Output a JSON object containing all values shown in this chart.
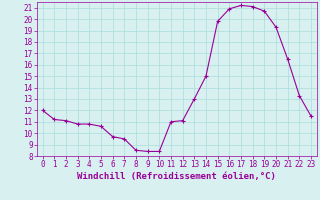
{
  "hours": [
    0,
    1,
    2,
    3,
    4,
    5,
    6,
    7,
    8,
    9,
    10,
    11,
    12,
    13,
    14,
    15,
    16,
    17,
    18,
    19,
    20,
    21,
    22,
    23
  ],
  "windchill": [
    12.0,
    11.2,
    11.1,
    10.8,
    10.8,
    10.6,
    9.7,
    9.5,
    8.5,
    8.4,
    8.4,
    11.0,
    11.1,
    13.0,
    15.0,
    19.8,
    20.9,
    21.2,
    21.1,
    20.7,
    19.3,
    16.5,
    13.3,
    11.5
  ],
  "line_color": "#990099",
  "marker": "+",
  "marker_size": 3,
  "bg_color": "#d8f0f0",
  "grid_color": "#aadddd",
  "axis_color": "#990099",
  "tick_label_color": "#990099",
  "xlabel": "Windchill (Refroidissement éolien,°C)",
  "xlabel_color": "#990099",
  "ylim": [
    8,
    21.5
  ],
  "xlim": [
    -0.5,
    23.5
  ],
  "yticks": [
    8,
    9,
    10,
    11,
    12,
    13,
    14,
    15,
    16,
    17,
    18,
    19,
    20,
    21
  ],
  "xticks": [
    0,
    1,
    2,
    3,
    4,
    5,
    6,
    7,
    8,
    9,
    10,
    11,
    12,
    13,
    14,
    15,
    16,
    17,
    18,
    19,
    20,
    21,
    22,
    23
  ],
  "font_size": 5.5,
  "xlabel_font_size": 6.5
}
